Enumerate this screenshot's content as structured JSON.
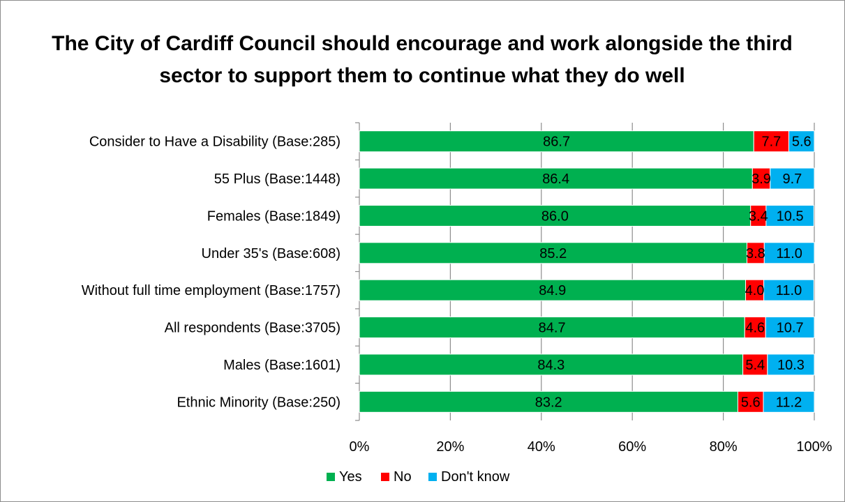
{
  "chart_data": {
    "type": "bar",
    "orientation": "horizontal",
    "stacked": "percent",
    "title": "The City of Cardiff Council should encourage and work alongside the third sector to support them to continue what they do well",
    "categories": [
      "Consider to Have a Disability (Base:285)",
      "55 Plus (Base:1448)",
      "Females (Base:1849)",
      "Under 35's (Base:608)",
      "Without full time employment (Base:1757)",
      "All respondents (Base:3705)",
      "Males (Base:1601)",
      "Ethnic Minority (Base:250)"
    ],
    "series": [
      {
        "name": "Yes",
        "color": "#00b050",
        "values": [
          86.7,
          86.4,
          86.0,
          85.2,
          84.9,
          84.7,
          84.3,
          83.2
        ],
        "labels": [
          "86.7",
          "86.4",
          "86.0",
          "85.2",
          "84.9",
          "84.7",
          "84.3",
          "83.2"
        ]
      },
      {
        "name": "No",
        "color": "#ff0000",
        "values": [
          7.7,
          3.9,
          3.4,
          3.8,
          4.0,
          4.6,
          5.4,
          5.6
        ],
        "labels": [
          "7.7",
          "3.9",
          "3.4",
          "3.8",
          "4.0",
          "4.6",
          "5.4",
          "5.6"
        ]
      },
      {
        "name": "Don't know",
        "color": "#00b0f0",
        "values": [
          5.6,
          9.7,
          10.5,
          11.0,
          11.0,
          10.7,
          10.3,
          11.2
        ],
        "labels": [
          "5.6",
          "9.7",
          "10.5",
          "11.0",
          "11.0",
          "10.7",
          "10.3",
          "11.2"
        ]
      }
    ],
    "xlim": [
      0,
      100
    ],
    "xticks": [
      "0%",
      "20%",
      "40%",
      "60%",
      "80%",
      "100%"
    ],
    "grid": true,
    "legend_position": "bottom"
  }
}
